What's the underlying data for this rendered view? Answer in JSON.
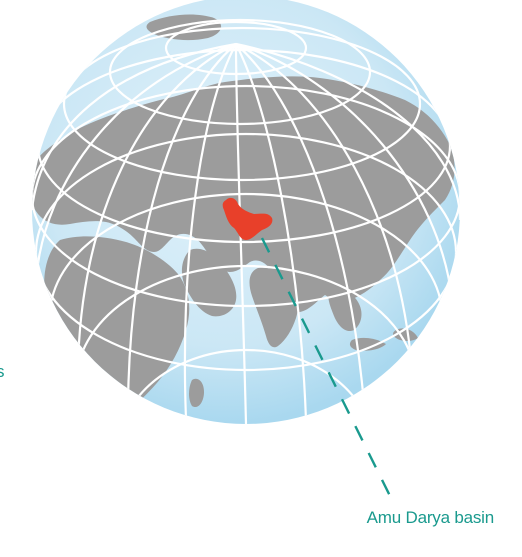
{
  "map": {
    "callout_label": "Amu Darya basin",
    "edge_label": "s",
    "colors": {
      "ocean": "#cfe9f6",
      "ocean_edge": "#9fd3ec",
      "land": "#9c9c9c",
      "graticule": "#ffffff",
      "basin": "#e8402a",
      "leader": "#1a9a8e"
    }
  }
}
